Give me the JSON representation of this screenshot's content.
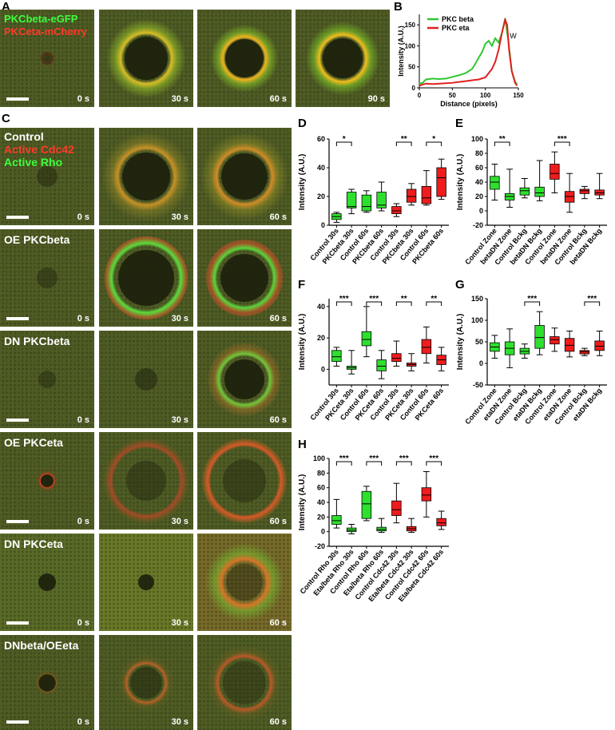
{
  "panel_labels": {
    "A": "A",
    "B": "B",
    "C": "C",
    "D": "D",
    "E": "E",
    "F": "F",
    "G": "G",
    "H": "H"
  },
  "panelA": {
    "labels": [
      "PKCbeta-eGFP",
      "PKCeta-mCherry"
    ],
    "label_colors": [
      "#3cff3c",
      "#ff3a2a"
    ],
    "times": [
      "0 s",
      "30 s",
      "60 s",
      "90 s"
    ]
  },
  "panelC": {
    "top_labels": [
      "Control",
      "Active Cdc42",
      "Active Rho"
    ],
    "top_label_colors": [
      "#ffffff",
      "#ff3a2a",
      "#3cff3c"
    ],
    "rows": [
      "OE PKCbeta",
      "DN PKCbeta",
      "OE PKCeta",
      "DN PKCeta",
      "DNbeta/OEeta"
    ],
    "times": [
      "0 s",
      "30 s",
      "60 s"
    ]
  },
  "chart_data": [
    {
      "panel": "B",
      "type": "line",
      "xlabel": "Distance (pixels)",
      "ylabel": "Intensity (A.U.)",
      "xlim": [
        0,
        150
      ],
      "ylim": [
        0,
        175
      ],
      "xticks": [
        "0",
        "50",
        "100",
        "150"
      ],
      "yticks": [
        "0",
        "50",
        "100",
        "150"
      ],
      "annotation": "W",
      "legend": "top-left",
      "series": [
        {
          "name": "PKC beta",
          "color": "#2ec82e",
          "x": [
            0,
            5,
            10,
            20,
            30,
            40,
            50,
            60,
            70,
            80,
            85,
            90,
            95,
            100,
            105,
            110,
            115,
            120,
            125,
            130,
            135,
            140,
            145,
            148
          ],
          "y": [
            10,
            12,
            20,
            22,
            21,
            22,
            26,
            30,
            35,
            45,
            58,
            72,
            85,
            105,
            112,
            100,
            118,
            108,
            130,
            165,
            110,
            40,
            15,
            8
          ]
        },
        {
          "name": "PKC eta",
          "color": "#e02020",
          "x": [
            0,
            5,
            10,
            20,
            30,
            40,
            50,
            60,
            70,
            80,
            90,
            100,
            110,
            115,
            120,
            125,
            130,
            133,
            136,
            140,
            145,
            148
          ],
          "y": [
            5,
            8,
            10,
            9,
            10,
            11,
            12,
            14,
            16,
            18,
            20,
            25,
            45,
            62,
            90,
            130,
            162,
            150,
            90,
            40,
            12,
            5
          ]
        }
      ]
    },
    {
      "panel": "D",
      "type": "box",
      "ylabel": "Intensity (A.U.)",
      "ylim": [
        0,
        60
      ],
      "yticks": [
        "0",
        "20",
        "40",
        "60"
      ],
      "categories": [
        "Control 30s",
        "PKCbeta 30s",
        "Control 60s",
        "PKCbeta 60s",
        "Control 30s",
        "PKCbeta 30s",
        "Control 60s",
        "PKCbeta 60s"
      ],
      "colors": [
        "green",
        "green",
        "green",
        "green",
        "red",
        "red",
        "red",
        "red"
      ],
      "boxes": [
        [
          2,
          4,
          6,
          8,
          9
        ],
        [
          8,
          12,
          13,
          23,
          25
        ],
        [
          9,
          10,
          13,
          21,
          24
        ],
        [
          10,
          12,
          14,
          23,
          30
        ],
        [
          6,
          8,
          10,
          13,
          15
        ],
        [
          14,
          16,
          20,
          25,
          29
        ],
        [
          14,
          15,
          19,
          27,
          38
        ],
        [
          18,
          20,
          33,
          40,
          46
        ]
      ],
      "significance": [
        {
          "i": 0,
          "j": 1,
          "label": "*"
        },
        {
          "i": 4,
          "j": 5,
          "label": "**"
        },
        {
          "i": 6,
          "j": 7,
          "label": "*"
        }
      ]
    },
    {
      "panel": "E",
      "type": "box",
      "ylabel": "Intensity (A.U.)",
      "ylim": [
        -20,
        100
      ],
      "yticks": [
        "-20",
        "0",
        "20",
        "40",
        "60",
        "80",
        "100"
      ],
      "categories": [
        "Control Zone",
        "betaDN Zone",
        "Control Bckg",
        "betaDN Bckg",
        "Control Zone",
        "betaDN Zone",
        "Control Bckg",
        "betaDN Bckg"
      ],
      "colors": [
        "green",
        "green",
        "green",
        "green",
        "red",
        "red",
        "red",
        "red"
      ],
      "boxes": [
        [
          15,
          30,
          40,
          48,
          65
        ],
        [
          5,
          15,
          20,
          24,
          58
        ],
        [
          18,
          22,
          28,
          32,
          45
        ],
        [
          14,
          20,
          25,
          33,
          70
        ],
        [
          25,
          44,
          52,
          65,
          82
        ],
        [
          -2,
          12,
          20,
          27,
          52
        ],
        [
          17,
          24,
          28,
          30,
          34
        ],
        [
          17,
          22,
          25,
          29,
          52
        ]
      ],
      "significance": [
        {
          "i": 0,
          "j": 1,
          "label": "**"
        },
        {
          "i": 4,
          "j": 5,
          "label": "***"
        }
      ]
    },
    {
      "panel": "F",
      "type": "box",
      "ylabel": "Intensity (A.U.)",
      "ylim": [
        -10,
        45
      ],
      "yticks": [
        "0",
        "20",
        "40"
      ],
      "categories": [
        "Control 30s",
        "PKCeta 30s",
        "Control 60s",
        "PKCeta 60s",
        "Control 30s",
        "PKCeta 30s",
        "Control 60s",
        "PKCeta 60s"
      ],
      "colors": [
        "green",
        "green",
        "green",
        "green",
        "red",
        "red",
        "red",
        "red"
      ],
      "boxes": [
        [
          2,
          5,
          8,
          12,
          14
        ],
        [
          -3,
          0,
          1,
          2,
          12
        ],
        [
          8,
          15,
          19,
          24,
          40
        ],
        [
          -6,
          -1,
          2,
          6,
          12
        ],
        [
          2,
          5,
          7,
          10,
          18
        ],
        [
          -1,
          2,
          3,
          4,
          10
        ],
        [
          4,
          10,
          14,
          19,
          27
        ],
        [
          -1,
          3,
          6,
          9,
          14
        ]
      ],
      "significance": [
        {
          "i": 0,
          "j": 1,
          "label": "***"
        },
        {
          "i": 2,
          "j": 3,
          "label": "***"
        },
        {
          "i": 4,
          "j": 5,
          "label": "**"
        },
        {
          "i": 6,
          "j": 7,
          "label": "**"
        }
      ]
    },
    {
      "panel": "G",
      "type": "box",
      "ylabel": "Intensity (A.U.)",
      "ylim": [
        -50,
        150
      ],
      "yticks": [
        "-50",
        "0",
        "50",
        "100",
        "150"
      ],
      "categories": [
        "Control Zone",
        "etaDN Zone",
        "Control Bckg",
        "etaDN Bckg",
        "Control Zone",
        "etaDN Zone",
        "Control Bckg",
        "etaDN Bckg"
      ],
      "colors": [
        "green",
        "green",
        "green",
        "green",
        "red",
        "red",
        "red",
        "red"
      ],
      "boxes": [
        [
          12,
          28,
          38,
          48,
          65
        ],
        [
          -10,
          20,
          35,
          50,
          80
        ],
        [
          12,
          22,
          28,
          35,
          45
        ],
        [
          20,
          35,
          60,
          88,
          120
        ],
        [
          28,
          45,
          55,
          62,
          82
        ],
        [
          15,
          28,
          42,
          58,
          75
        ],
        [
          18,
          22,
          27,
          30,
          35
        ],
        [
          18,
          30,
          40,
          52,
          75
        ]
      ],
      "significance": [
        {
          "i": 2,
          "j": 3,
          "label": "***"
        },
        {
          "i": 6,
          "j": 7,
          "label": "***"
        }
      ]
    },
    {
      "panel": "H",
      "type": "box",
      "ylabel": "Intensity (A.U.)",
      "ylim": [
        -20,
        100
      ],
      "yticks": [
        "-20",
        "0",
        "20",
        "40",
        "60",
        "80",
        "100"
      ],
      "categories": [
        "Control Rho 30s",
        "Eta/beta Rho 30s",
        "Control Rho 60s",
        "Eta/beta Rho 60s",
        "Control Cdc42 30s",
        "Eta/beta Cdc42 30s",
        "Control Cdc42 60s",
        "Eta/beta Cdc42 60s"
      ],
      "colors": [
        "green",
        "green",
        "green",
        "green",
        "red",
        "red",
        "red",
        "red"
      ],
      "boxes": [
        [
          5,
          10,
          15,
          22,
          44
        ],
        [
          -3,
          0,
          2,
          5,
          10
        ],
        [
          15,
          18,
          38,
          55,
          62
        ],
        [
          -1,
          1,
          3,
          6,
          18
        ],
        [
          12,
          22,
          30,
          42,
          66
        ],
        [
          -1,
          1,
          4,
          7,
          18
        ],
        [
          20,
          42,
          50,
          60,
          82
        ],
        [
          3,
          8,
          12,
          18,
          28
        ]
      ],
      "significance": [
        {
          "i": 0,
          "j": 1,
          "label": "***"
        },
        {
          "i": 2,
          "j": 3,
          "label": "***"
        },
        {
          "i": 4,
          "j": 5,
          "label": "***"
        },
        {
          "i": 6,
          "j": 7,
          "label": "***"
        }
      ]
    }
  ]
}
